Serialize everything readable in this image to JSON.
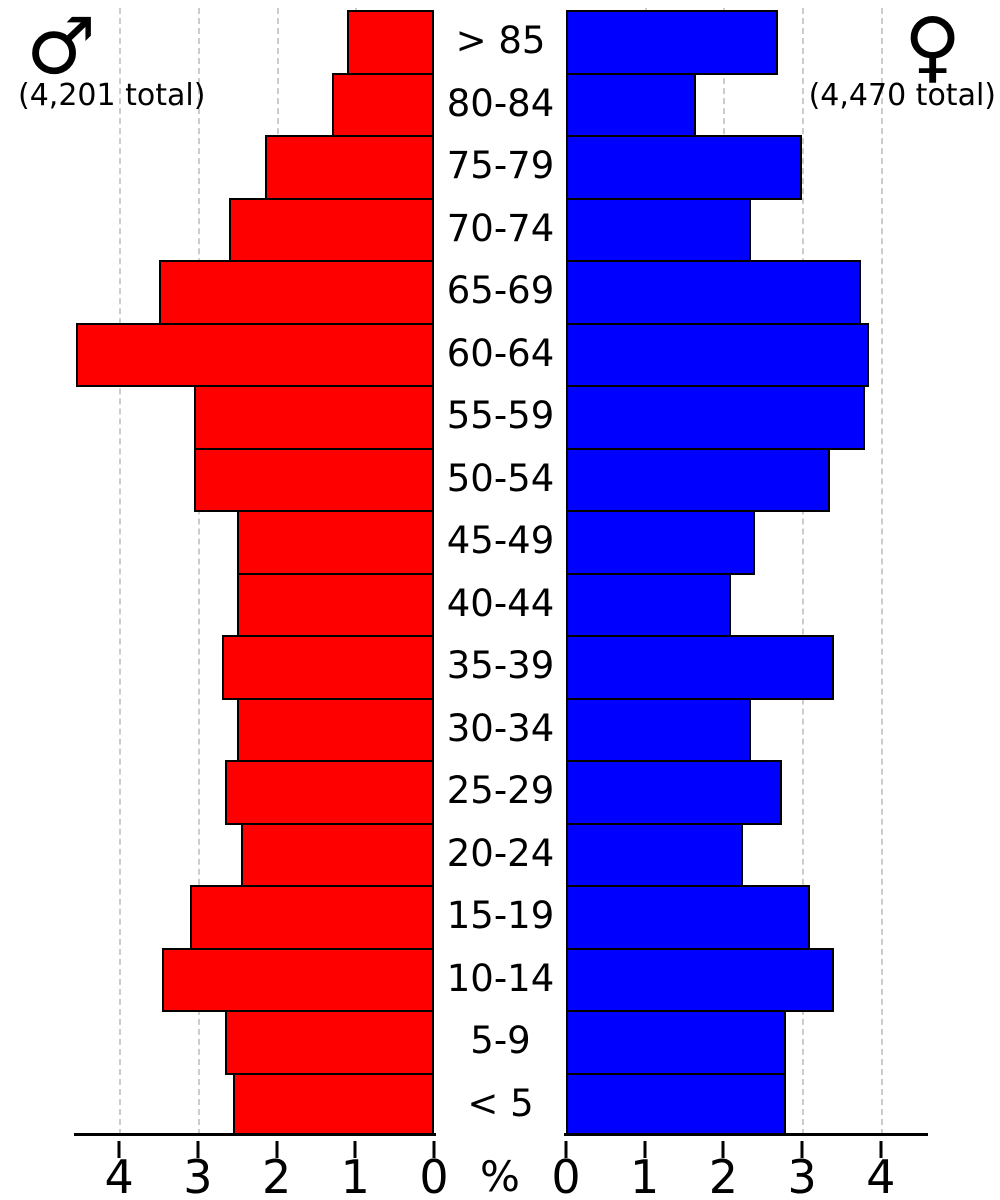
{
  "chart_data": {
    "type": "bar",
    "subtype": "population_pyramid",
    "title": "",
    "unit_label": "%",
    "categories": [
      "> 85",
      "80-84",
      "75-79",
      "70-74",
      "65-69",
      "60-64",
      "55-59",
      "50-54",
      "45-49",
      "40-44",
      "35-39",
      "30-34",
      "25-29",
      "20-24",
      "15-19",
      "10-14",
      "5-9",
      "< 5"
    ],
    "series": [
      {
        "name": "Male",
        "symbol": "♂",
        "total_label": "(4,201 total)",
        "color": "#ff0000",
        "side": "left",
        "values": [
          1.1,
          1.3,
          2.15,
          2.6,
          3.5,
          4.55,
          3.05,
          3.05,
          2.5,
          2.5,
          2.7,
          2.5,
          2.65,
          2.45,
          3.1,
          3.45,
          2.65,
          2.55
        ]
      },
      {
        "name": "Female",
        "symbol": "♀",
        "total_label": "(4,470 total)",
        "color": "#0000ff",
        "side": "right",
        "values": [
          2.7,
          1.65,
          3.0,
          2.35,
          3.75,
          3.85,
          3.8,
          3.35,
          2.4,
          2.1,
          3.4,
          2.35,
          2.75,
          2.25,
          3.1,
          3.4,
          2.8,
          2.8
        ]
      }
    ],
    "axis_tick_values": [
      0,
      1,
      2,
      3,
      4
    ],
    "xlim": [
      0,
      4.6
    ],
    "grid": true,
    "grid_color": "#cccccc",
    "bar_border_color": "#000000"
  }
}
